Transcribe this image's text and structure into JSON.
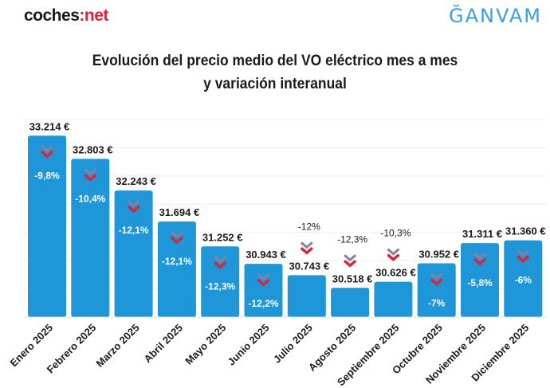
{
  "header": {
    "logo_left": {
      "main": "coches",
      "accent": "net",
      "colon": ":"
    },
    "logo_right": "ĞANVAM"
  },
  "chart_data": {
    "type": "bar",
    "title_line1": "Evolución del precio medio del VO eléctrico mes a mes",
    "title_line2": "y variación interanual",
    "categories": [
      "Enero 2025",
      "Febrero 2025",
      "Marzo 2025",
      "Abril 2025",
      "Mayo 2025",
      "Junio 2025",
      "Julio 2025",
      "Agosto 2025",
      "Septiembre 2025",
      "Octubre 2025",
      "Noviembre 2025",
      "Diciembre 2025"
    ],
    "values": [
      33214,
      32803,
      32243,
      31694,
      31252,
      30943,
      30743,
      30518,
      30626,
      30952,
      31311,
      31360
    ],
    "value_labels": [
      "33.214 €",
      "32.803 €",
      "32.243 €",
      "31.694 €",
      "31.252 €",
      "30.943 €",
      "30.743 €",
      "30.518 €",
      "30.626 €",
      "30.952 €",
      "31.311 €",
      "31.360 €"
    ],
    "yoy_variation": [
      "-9,8%",
      "-10,4%",
      "-12,1%",
      "-12,1%",
      "-12,3%",
      "-12,2%",
      "-12%",
      "-12,3%",
      "-10,3%",
      "-7%",
      "-5,8%",
      "-6%"
    ],
    "ylim": [
      30000,
      33500
    ],
    "grid": true,
    "colors": {
      "bar": "#1e96d8",
      "down_icon": "#d8263c",
      "down_icon_shadow": "#8a7fa0",
      "text": "#1a1a1a"
    },
    "icon": "double-chevron-down-icon"
  }
}
